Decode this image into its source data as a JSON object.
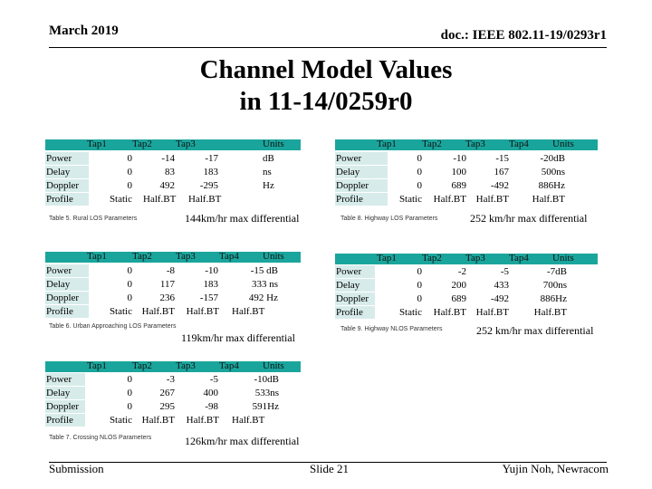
{
  "header": {
    "date": "March 2019",
    "doc_id": "doc.: IEEE 802.11-19/0293r1"
  },
  "title": {
    "line1": "Channel Model Values",
    "line2": "in 11-14/0259r0"
  },
  "footer": {
    "left": "Submission",
    "center": "Slide 21",
    "right": "Yujin Noh, Newracom"
  },
  "row_labels": [
    "Power",
    "Delay",
    "Doppler",
    "Profile"
  ],
  "tables": [
    {
      "headers": [
        "Tap1",
        "Tap2",
        "Tap3",
        "Units"
      ],
      "rows": [
        [
          "0",
          "-14",
          "-17",
          "dB"
        ],
        [
          "0",
          "83",
          "183",
          "ns"
        ],
        [
          "0",
          "492",
          "-295",
          "Hz"
        ],
        [
          "Static",
          "Half.BT",
          "Half.BT",
          ""
        ]
      ],
      "caption": "Table 5. Rural LOS Parameters",
      "note": "144km/hr max differential"
    },
    {
      "headers": [
        "Tap1",
        "Tap2",
        "Tap3",
        "Tap4",
        "Units"
      ],
      "rows": [
        [
          "0",
          "-10",
          "-15",
          "-20dB"
        ],
        [
          "0",
          "100",
          "167",
          "500ns"
        ],
        [
          "0",
          "689",
          "-492",
          "886Hz"
        ],
        [
          "Static",
          "Half.BT",
          "Half.BT",
          "Half.BT"
        ]
      ],
      "caption": "Table 8. Highway LOS Parameters",
      "note": "252 km/hr max differential"
    },
    {
      "headers": [
        "Tap1",
        "Tap2",
        "Tap3",
        "Tap4",
        "Units"
      ],
      "rows": [
        [
          "0",
          "-8",
          "-10",
          "-15 dB"
        ],
        [
          "0",
          "117",
          "183",
          "333 ns"
        ],
        [
          "0",
          "236",
          "-157",
          "492 Hz"
        ],
        [
          "Static",
          "Half.BT",
          "Half.BT",
          "Half.BT"
        ]
      ],
      "caption": "Table 6. Urban Approaching LOS Parameters",
      "note": "119km/hr max differential"
    },
    {
      "headers": [
        "Tap1",
        "Tap2",
        "Tap3",
        "Tap4",
        "Units"
      ],
      "rows": [
        [
          "0",
          "-2",
          "-5",
          "-7dB"
        ],
        [
          "0",
          "200",
          "433",
          "700ns"
        ],
        [
          "0",
          "689",
          "-492",
          "886Hz"
        ],
        [
          "Static",
          "Half.BT",
          "Half.BT",
          "Half.BT"
        ]
      ],
      "caption": "Table 9. Highway NLOS Parameters",
      "note": "252 km/hr max differential"
    },
    {
      "headers": [
        "Tap1",
        "Tap2",
        "Tap3",
        "Tap4",
        "Units"
      ],
      "rows": [
        [
          "0",
          "-3",
          "-5",
          "-10dB"
        ],
        [
          "0",
          "267",
          "400",
          "533ns"
        ],
        [
          "0",
          "295",
          "-98",
          "591Hz"
        ],
        [
          "Static",
          "Half.BT",
          "Half.BT",
          "Half.BT"
        ]
      ],
      "caption": "Table 7. Crossing NLOS Parameters",
      "note": "126km/hr max differential"
    }
  ]
}
